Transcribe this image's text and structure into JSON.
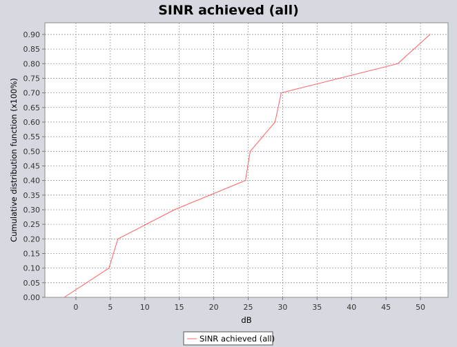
{
  "chart_data": {
    "type": "line",
    "title": "SINR achieved (all)",
    "xlabel": "dB",
    "ylabel": "Cumulative distribution function (x100%)",
    "xlim": [
      -4.5,
      54
    ],
    "ylim": [
      0,
      0.94
    ],
    "xticks": [
      0,
      5,
      10,
      15,
      20,
      25,
      30,
      35,
      40,
      45,
      50
    ],
    "yticks": [
      0.0,
      0.05,
      0.1,
      0.15,
      0.2,
      0.25,
      0.3,
      0.35,
      0.4,
      0.45,
      0.5,
      0.55,
      0.6,
      0.65,
      0.7,
      0.75,
      0.8,
      0.85,
      0.9
    ],
    "grid": true,
    "legend_position": "bottom-center",
    "series": [
      {
        "name": "SINR achieved (all)",
        "color": "#ff6060",
        "x": [
          -1.7,
          4.8,
          6.1,
          14.3,
          24.6,
          25.3,
          28.9,
          29.8,
          46.7,
          51.4
        ],
        "y": [
          0.0,
          0.1,
          0.2,
          0.3,
          0.4,
          0.5,
          0.6,
          0.7,
          0.8,
          0.9
        ]
      }
    ]
  }
}
